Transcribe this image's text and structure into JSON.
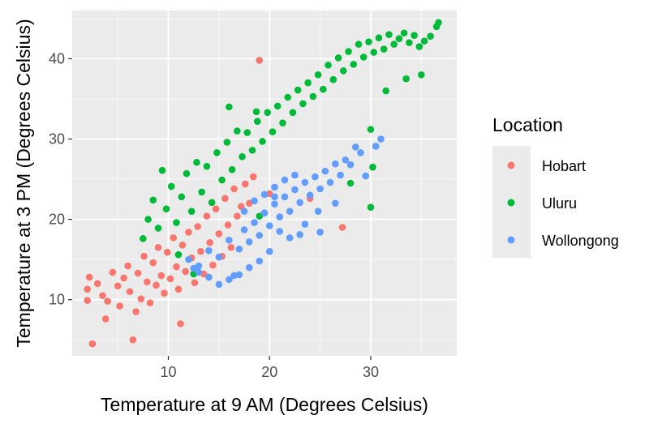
{
  "chart_data": {
    "type": "scatter",
    "xlabel": "Temperature at 9 AM (Degrees Celsius)",
    "ylabel": "Temperature at 3 PM (Degrees Celsius)",
    "xlim": [
      0.5,
      38.5
    ],
    "ylim": [
      3,
      46
    ],
    "x_ticks": [
      10,
      20,
      30
    ],
    "y_ticks": [
      10,
      20,
      30,
      40
    ],
    "x_tick_labels": [
      "10",
      "20",
      "30"
    ],
    "y_tick_labels": [
      "10",
      "20",
      "30",
      "40"
    ],
    "grid": true,
    "legend": {
      "title": "Location",
      "position": "right"
    },
    "series": [
      {
        "name": "Hobart",
        "color": "#F8766D",
        "points": [
          [
            2.2,
            12.8
          ],
          [
            2.0,
            11.3
          ],
          [
            2.0,
            9.9
          ],
          [
            2.5,
            4.5
          ],
          [
            3.0,
            12.0
          ],
          [
            3.5,
            10.5
          ],
          [
            3.8,
            7.6
          ],
          [
            4.0,
            9.8
          ],
          [
            4.5,
            13.4
          ],
          [
            5.0,
            11.7
          ],
          [
            5.2,
            9.2
          ],
          [
            5.6,
            12.7
          ],
          [
            6.0,
            14.2
          ],
          [
            6.2,
            11.0
          ],
          [
            6.5,
            5.0
          ],
          [
            6.8,
            8.5
          ],
          [
            7.0,
            13.3
          ],
          [
            7.3,
            10.1
          ],
          [
            7.6,
            15.4
          ],
          [
            7.9,
            12.2
          ],
          [
            8.2,
            9.6
          ],
          [
            8.5,
            14.6
          ],
          [
            8.8,
            11.8
          ],
          [
            9.0,
            16.5
          ],
          [
            9.3,
            13.0
          ],
          [
            9.6,
            10.8
          ],
          [
            9.9,
            15.9
          ],
          [
            10.2,
            12.6
          ],
          [
            10.5,
            17.7
          ],
          [
            10.8,
            14.1
          ],
          [
            11.0,
            11.3
          ],
          [
            11.2,
            7.0
          ],
          [
            11.4,
            16.8
          ],
          [
            11.7,
            13.5
          ],
          [
            12.0,
            18.4
          ],
          [
            12.3,
            15.2
          ],
          [
            12.6,
            12.1
          ],
          [
            12.9,
            19.1
          ],
          [
            13.2,
            16.0
          ],
          [
            13.5,
            13.2
          ],
          [
            13.8,
            20.4
          ],
          [
            14.1,
            17.1
          ],
          [
            14.4,
            14.3
          ],
          [
            14.7,
            21.3
          ],
          [
            15.0,
            18.2
          ],
          [
            15.3,
            15.4
          ],
          [
            15.6,
            22.6
          ],
          [
            15.9,
            19.3
          ],
          [
            16.2,
            16.5
          ],
          [
            16.5,
            23.8
          ],
          [
            16.8,
            20.4
          ],
          [
            17.2,
            21.6
          ],
          [
            17.6,
            24.4
          ],
          [
            18.0,
            22.0
          ],
          [
            18.4,
            25.3
          ],
          [
            19.0,
            39.8
          ],
          [
            20.0,
            23.2
          ],
          [
            24.0,
            22.6
          ],
          [
            27.2,
            19.0
          ]
        ]
      },
      {
        "name": "Uluru",
        "color": "#00BA38",
        "points": [
          [
            7.5,
            17.6
          ],
          [
            8.0,
            20.0
          ],
          [
            8.5,
            22.4
          ],
          [
            9.0,
            18.9
          ],
          [
            9.4,
            26.1
          ],
          [
            9.8,
            21.3
          ],
          [
            10.3,
            24.1
          ],
          [
            10.8,
            19.6
          ],
          [
            11.3,
            22.8
          ],
          [
            11.8,
            25.7
          ],
          [
            12.3,
            21.0
          ],
          [
            12.8,
            27.1
          ],
          [
            13.3,
            23.4
          ],
          [
            13.8,
            26.6
          ],
          [
            14.3,
            22.1
          ],
          [
            14.8,
            28.3
          ],
          [
            15.3,
            24.9
          ],
          [
            15.8,
            29.6
          ],
          [
            16.3,
            26.2
          ],
          [
            16.8,
            31.0
          ],
          [
            17.3,
            27.8
          ],
          [
            17.8,
            30.8
          ],
          [
            18.3,
            28.6
          ],
          [
            18.8,
            32.2
          ],
          [
            19.3,
            29.7
          ],
          [
            19.8,
            33.3
          ],
          [
            20.3,
            30.9
          ],
          [
            20.8,
            34.1
          ],
          [
            21.3,
            32.0
          ],
          [
            21.8,
            35.2
          ],
          [
            22.3,
            33.3
          ],
          [
            22.8,
            36.1
          ],
          [
            23.3,
            34.4
          ],
          [
            23.8,
            37.0
          ],
          [
            24.3,
            35.3
          ],
          [
            24.8,
            38.0
          ],
          [
            25.3,
            36.2
          ],
          [
            25.8,
            39.2
          ],
          [
            26.3,
            37.4
          ],
          [
            26.8,
            40.1
          ],
          [
            27.3,
            38.5
          ],
          [
            27.8,
            40.9
          ],
          [
            28.3,
            39.3
          ],
          [
            28.8,
            41.8
          ],
          [
            29.3,
            40.2
          ],
          [
            29.8,
            42.1
          ],
          [
            30.3,
            40.8
          ],
          [
            30.8,
            42.6
          ],
          [
            31.3,
            41.2
          ],
          [
            31.8,
            43.0
          ],
          [
            32.3,
            41.8
          ],
          [
            32.8,
            42.5
          ],
          [
            33.3,
            43.2
          ],
          [
            33.8,
            42.0
          ],
          [
            34.3,
            42.9
          ],
          [
            34.8,
            41.5
          ],
          [
            35.3,
            42.2
          ],
          [
            35.9,
            42.8
          ],
          [
            36.5,
            44.0
          ],
          [
            36.7,
            44.5
          ],
          [
            28.0,
            24.5
          ],
          [
            30.0,
            21.5
          ],
          [
            30.2,
            26.5
          ],
          [
            31.5,
            36.0
          ],
          [
            33.5,
            37.5
          ],
          [
            35.0,
            38.0
          ],
          [
            19.0,
            20.4
          ],
          [
            16.0,
            34.0
          ],
          [
            18.7,
            33.4
          ],
          [
            30.0,
            31.2
          ],
          [
            11.0,
            15.6
          ],
          [
            12.5,
            13.2
          ]
        ]
      },
      {
        "name": "Wollongong",
        "color": "#619CFF",
        "points": [
          [
            12.0,
            15.0
          ],
          [
            13.0,
            14.2
          ],
          [
            14.0,
            16.1
          ],
          [
            15.0,
            15.3
          ],
          [
            16.0,
            17.4
          ],
          [
            16.5,
            13.0
          ],
          [
            17.0,
            16.3
          ],
          [
            17.5,
            18.7
          ],
          [
            18.0,
            17.2
          ],
          [
            18.5,
            19.6
          ],
          [
            19.0,
            18.0
          ],
          [
            19.5,
            20.8
          ],
          [
            20.0,
            19.2
          ],
          [
            20.5,
            21.9
          ],
          [
            21.0,
            20.3
          ],
          [
            21.5,
            22.8
          ],
          [
            22.0,
            21.0
          ],
          [
            22.5,
            23.7
          ],
          [
            23.0,
            22.1
          ],
          [
            23.5,
            24.6
          ],
          [
            24.0,
            23.0
          ],
          [
            24.5,
            25.3
          ],
          [
            25.0,
            23.8
          ],
          [
            25.5,
            26.0
          ],
          [
            26.0,
            24.6
          ],
          [
            26.5,
            26.9
          ],
          [
            27.0,
            25.5
          ],
          [
            27.5,
            27.4
          ],
          [
            28.0,
            26.8
          ],
          [
            29.0,
            28.3
          ],
          [
            29.5,
            25.4
          ],
          [
            30.5,
            29.1
          ],
          [
            31.0,
            30.0
          ],
          [
            25.0,
            18.4
          ],
          [
            24.8,
            21.0
          ],
          [
            23.5,
            19.4
          ],
          [
            23.0,
            18.1
          ],
          [
            22.0,
            17.7
          ],
          [
            20.0,
            16.0
          ],
          [
            19.0,
            14.8
          ],
          [
            18.0,
            14.0
          ],
          [
            17.0,
            13.1
          ],
          [
            16.0,
            12.5
          ],
          [
            15.0,
            11.9
          ],
          [
            14.0,
            12.8
          ],
          [
            13.0,
            13.4
          ],
          [
            12.5,
            13.9
          ],
          [
            17.5,
            21.0
          ],
          [
            18.5,
            22.3
          ],
          [
            19.5,
            23.1
          ],
          [
            20.5,
            24.0
          ],
          [
            21.5,
            24.9
          ],
          [
            22.5,
            25.5
          ],
          [
            20.5,
            22.8
          ],
          [
            21.0,
            18.5
          ],
          [
            26.5,
            22.0
          ],
          [
            28.5,
            29.0
          ]
        ]
      }
    ]
  }
}
